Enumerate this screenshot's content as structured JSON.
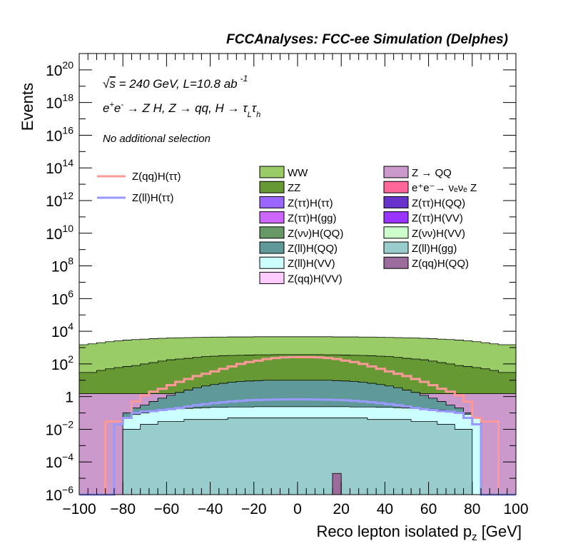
{
  "header": "FCCAnalyses: FCC-ee Simulation (Delphes)",
  "annotations": {
    "energy_prefix": "√",
    "energy_s": "s",
    "energy_rest": " = 240 GeV, L=10.8 ab",
    "energy_sup": "-1",
    "process_a": "e",
    "process_sup1": "+",
    "process_b": "e",
    "process_sup2": "-",
    "process_c": " → Z H, Z  → qq, H  →  τ",
    "process_sub1": "L",
    "process_d": "τ",
    "process_sub2": "h",
    "selection": "No additional selection"
  },
  "chart_data": {
    "type": "area",
    "title": "FCCAnalyses: FCC-ee Simulation (Delphes)",
    "xlabel": "Reco lepton isolated p",
    "xlabel_sub": "z",
    "xlabel_unit": " [GeV]",
    "ylabel": "Events",
    "xlim": [
      -100,
      100
    ],
    "ylim": [
      1e-06,
      1e+21
    ],
    "log_y": true,
    "x_ticks": [
      "−100",
      "−80",
      "−60",
      "−40",
      "−20",
      "0",
      "20",
      "40",
      "60",
      "80",
      "100"
    ],
    "x_tick_values": [
      -100,
      -80,
      -60,
      -40,
      -20,
      0,
      20,
      40,
      60,
      80,
      100
    ],
    "y_ticks": [
      {
        "base": "10",
        "exp": "−6",
        "value": 1e-06
      },
      {
        "base": "10",
        "exp": "−4",
        "value": 0.0001
      },
      {
        "base": "10",
        "exp": "−2",
        "value": 0.01
      },
      {
        "base": "1",
        "exp": "",
        "value": 1
      },
      {
        "base": "10",
        "exp": "2",
        "value": 100.0
      },
      {
        "base": "10",
        "exp": "4",
        "value": 10000.0
      },
      {
        "base": "10",
        "exp": "6",
        "value": 1000000.0
      },
      {
        "base": "10",
        "exp": "8",
        "value": 100000000.0
      },
      {
        "base": "10",
        "exp": "10",
        "value": 10000000000.0
      },
      {
        "base": "10",
        "exp": "12",
        "value": 1000000000000.0
      },
      {
        "base": "10",
        "exp": "14",
        "value": 100000000000000.0
      },
      {
        "base": "10",
        "exp": "16",
        "value": 1e+16
      },
      {
        "base": "10",
        "exp": "18",
        "value": 1e+18
      },
      {
        "base": "10",
        "exp": "20",
        "value": 1e+20
      }
    ],
    "bin_edges_note": "bins of 4 GeV from -100 to 100",
    "stacked_backgrounds": [
      {
        "name": "Z(qq)H(QQ)",
        "color": "#9b6b9c",
        "total_values": [
          1e-06,
          1e-06,
          1e-06,
          1e-06,
          1e-06,
          1e-06,
          1e-06,
          1e-06,
          1e-06,
          1e-06,
          1e-06,
          1e-06,
          1e-06,
          1e-06,
          1e-06,
          1e-06,
          1e-06,
          1e-06,
          1e-06,
          1e-06,
          1e-06,
          1e-06,
          1e-06,
          1e-06,
          1e-06,
          1e-06,
          1e-06,
          1e-06,
          1e-06,
          2e-05,
          1e-06,
          1e-06,
          1e-06,
          1e-06,
          1e-06,
          1e-06,
          1e-06,
          1e-06,
          1e-06,
          1e-06,
          1e-06,
          1e-06,
          1e-06,
          1e-06,
          1e-06,
          1e-06,
          1e-06,
          1e-06,
          1e-06,
          1e-06
        ]
      },
      {
        "name": "Z(ll)H(gg)",
        "color": "#99cccc",
        "total_values": [
          1e-06,
          1e-06,
          1e-06,
          1e-06,
          1e-06,
          0.01,
          0.01,
          0.02,
          0.02,
          0.03,
          0.03,
          0.03,
          0.04,
          0.04,
          0.04,
          0.04,
          0.04,
          0.05,
          0.05,
          0.05,
          0.05,
          0.05,
          0.05,
          0.05,
          0.05,
          0.05,
          0.05,
          0.05,
          0.05,
          0.05,
          0.05,
          0.05,
          0.05,
          0.04,
          0.04,
          0.04,
          0.04,
          0.04,
          0.03,
          0.03,
          0.03,
          0.02,
          0.02,
          0.01,
          0.01,
          1e-06,
          1e-06,
          1e-06,
          1e-06,
          1e-06
        ]
      },
      {
        "name": "Z(ll)H(VV)",
        "color": "#ccffff",
        "total_values": [
          1e-06,
          1e-06,
          1e-06,
          1e-06,
          1e-06,
          0.05,
          0.08,
          0.1,
          0.12,
          0.15,
          0.17,
          0.18,
          0.19,
          0.2,
          0.21,
          0.22,
          0.22,
          0.23,
          0.23,
          0.23,
          0.24,
          0.24,
          0.24,
          0.24,
          0.24,
          0.24,
          0.24,
          0.24,
          0.24,
          0.24,
          0.24,
          0.23,
          0.23,
          0.23,
          0.22,
          0.22,
          0.21,
          0.2,
          0.19,
          0.18,
          0.17,
          0.15,
          0.12,
          0.1,
          0.08,
          0.05,
          1e-06,
          1e-06,
          1e-06,
          1e-06
        ]
      },
      {
        "name": "Z(ll)H(QQ)",
        "color": "#5f9999",
        "total_values": [
          1e-06,
          1e-06,
          1e-06,
          1e-06,
          1e-06,
          0.1,
          0.2,
          0.3,
          0.5,
          0.8,
          1.2,
          1.8,
          2.5,
          3.5,
          4.5,
          5.5,
          6.5,
          7.5,
          8.5,
          9,
          9.5,
          10,
          10,
          10,
          10,
          10,
          10,
          10,
          10,
          9.5,
          9,
          8.5,
          7.5,
          6.5,
          5.5,
          4.5,
          3.5,
          2.5,
          1.8,
          1.2,
          0.8,
          0.5,
          0.3,
          0.2,
          0.1,
          1e-06,
          1e-06,
          1e-06,
          1e-06,
          1e-06
        ]
      },
      {
        "name": "Z → QQ",
        "color": "#cc99cc",
        "total_values": [
          1.5,
          1.5,
          1.5,
          1.5,
          1.5,
          1.5,
          1.5,
          1.5,
          1.5,
          1.5,
          1.5,
          1.5,
          1.5,
          1.5,
          1.5,
          1.5,
          1.5,
          1.5,
          1.5,
          1.5,
          1.5,
          1.5,
          1.5,
          1.5,
          1.5,
          1.5,
          1.5,
          1.5,
          1.5,
          1.5,
          1.5,
          1.5,
          1.5,
          1.5,
          1.5,
          1.5,
          1.5,
          1.5,
          1.5,
          1.5,
          1.5,
          1.5,
          1.5,
          1.5,
          1.5,
          1.5,
          1.5,
          1.5,
          1.5,
          1.5
        ]
      },
      {
        "name": "ZZ",
        "color": "#669933",
        "total_values": [
          30,
          30,
          40,
          50,
          60,
          70,
          80,
          100,
          120,
          150,
          180,
          200,
          220,
          250,
          280,
          300,
          320,
          330,
          340,
          350,
          360,
          360,
          370,
          370,
          370,
          370,
          370,
          370,
          360,
          360,
          350,
          340,
          330,
          320,
          300,
          280,
          250,
          220,
          200,
          180,
          150,
          120,
          100,
          80,
          70,
          60,
          50,
          40,
          30,
          30
        ]
      },
      {
        "name": "WW",
        "color": "#99cc66",
        "total_values": [
          1500,
          1700,
          2000,
          2300,
          2600,
          2900,
          3100,
          3300,
          3500,
          3700,
          3900,
          4000,
          4100,
          4200,
          4300,
          4400,
          4400,
          4500,
          4500,
          4500,
          4600,
          4600,
          4600,
          4600,
          4600,
          4600,
          4600,
          4600,
          4600,
          4500,
          4500,
          4500,
          4400,
          4400,
          4300,
          4200,
          4100,
          4000,
          3900,
          3700,
          3500,
          3300,
          3100,
          2900,
          2600,
          2300,
          2000,
          1700,
          1500,
          1500
        ]
      }
    ],
    "extra_background_layers": [
      {
        "name": "Z(νν)H(QQ)",
        "color": "#669966"
      },
      {
        "name": "e⁺e⁻→ νₑνₑ Z",
        "color": "#ff6699"
      },
      {
        "name": "Z(ττ)H(QQ)",
        "color": "#6633cc"
      },
      {
        "name": "Z(ττ)H(ττ)",
        "color": "#9966ff"
      },
      {
        "name": "Z(ττ)H(gg)",
        "color": "#cc66ff"
      },
      {
        "name": "Z(ττ)H(VV)",
        "color": "#9933ff"
      },
      {
        "name": "Z(νν)H(VV)",
        "color": "#ccffcc"
      },
      {
        "name": "Z(qq)H(VV)",
        "color": "#ffccff"
      }
    ],
    "signals": [
      {
        "name": "Z(qq)H(ττ)",
        "color": "#ff9999",
        "values": [
          1e-06,
          1e-06,
          1e-06,
          0.03,
          0.03,
          0.05,
          0.5,
          1.2,
          2,
          3,
          5,
          8,
          12,
          18,
          25,
          35,
          50,
          70,
          100,
          130,
          160,
          200,
          230,
          250,
          260,
          260,
          260,
          250,
          230,
          200,
          160,
          130,
          100,
          70,
          50,
          35,
          25,
          18,
          12,
          8,
          5,
          3,
          2,
          1.2,
          0.5,
          0.05,
          0.03,
          0.03,
          1e-06,
          1e-06
        ]
      },
      {
        "name": "Z(ll)H(ττ)",
        "color": "#9999ff",
        "values": [
          1e-06,
          1e-06,
          1e-06,
          1e-06,
          0.02,
          0.05,
          0.1,
          0.12,
          0.13,
          0.15,
          0.17,
          0.2,
          0.25,
          0.3,
          0.35,
          0.4,
          0.45,
          0.5,
          0.55,
          0.6,
          0.62,
          0.65,
          0.66,
          0.67,
          0.68,
          0.68,
          0.67,
          0.66,
          0.65,
          0.62,
          0.6,
          0.55,
          0.5,
          0.45,
          0.4,
          0.35,
          0.3,
          0.25,
          0.2,
          0.17,
          0.15,
          0.13,
          0.12,
          0.1,
          0.05,
          0.02,
          1e-06,
          1e-06,
          1e-06,
          1e-06
        ]
      }
    ],
    "legend_left": [
      "Z(qq)H(ττ)",
      "Z(ll)H(ττ)"
    ],
    "legend_mid": [
      "WW",
      "ZZ",
      "Z(ττ)H(ττ)",
      "Z(ττ)H(gg)",
      "Z(νν)H(QQ)",
      "Z(ll)H(QQ)",
      "Z(ll)H(VV)",
      "Z(qq)H(VV)"
    ],
    "legend_right": [
      "Z → QQ",
      "e⁺e⁻→ νₑνₑ Z",
      "Z(ττ)H(QQ)",
      "Z(ττ)H(VV)",
      "Z(νν)H(VV)",
      "Z(ll)H(gg)",
      "Z(qq)H(QQ)"
    ],
    "legend_placement": "top",
    "grid": false
  },
  "legend_colors": {
    "WW": "#99cc66",
    "ZZ": "#669933",
    "Z(ττ)H(ττ)": "#9966ff",
    "Z(ττ)H(gg)": "#cc66ff",
    "Z(νν)H(QQ)": "#669966",
    "Z(ll)H(QQ)": "#5f9999",
    "Z(ll)H(VV)": "#ccffff",
    "Z(qq)H(VV)": "#ffccff",
    "Z → QQ": "#cc99cc",
    "e⁺e⁻→ νₑνₑ Z": "#ff6699",
    "Z(ττ)H(QQ)": "#6633cc",
    "Z(ττ)H(VV)": "#9933ff",
    "Z(νν)H(VV)": "#ccffcc",
    "Z(ll)H(gg)": "#99cccc",
    "Z(qq)H(QQ)": "#9b6b9c",
    "Z(qq)H(ττ)": "#ff9999",
    "Z(ll)H(ττ)": "#9999ff"
  }
}
